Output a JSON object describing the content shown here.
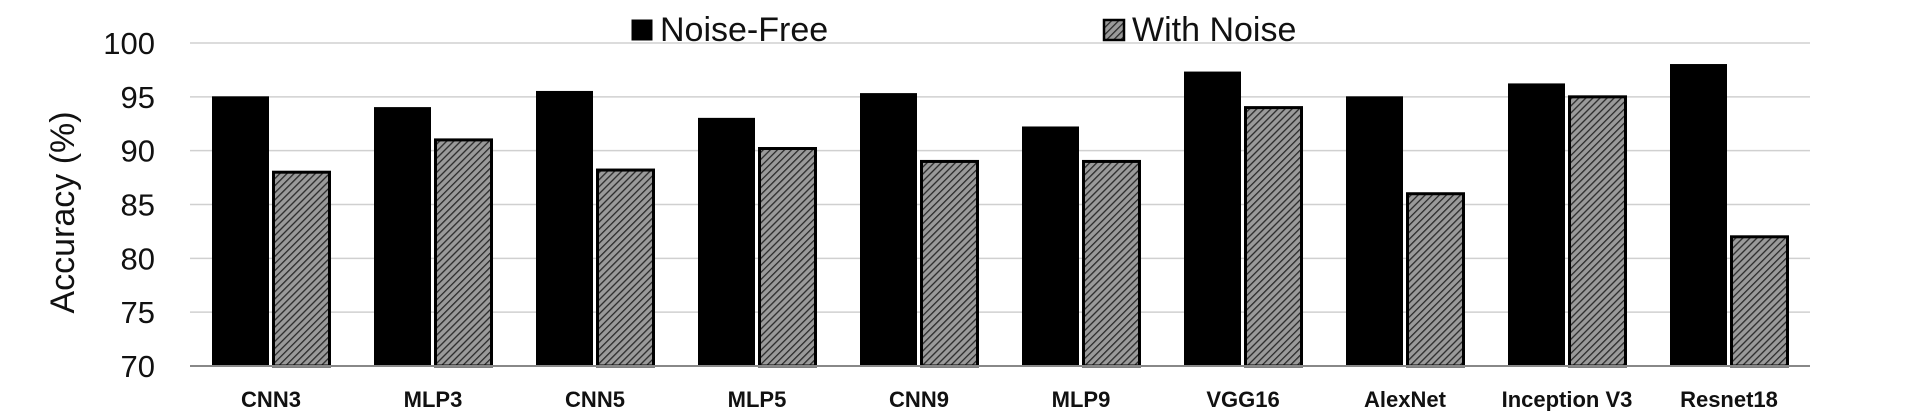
{
  "chart_data": {
    "type": "bar",
    "title": "",
    "xlabel": "",
    "ylabel": "Accuracy (%)",
    "ylim": [
      70,
      100
    ],
    "yticks": [
      70,
      75,
      80,
      85,
      90,
      95,
      100
    ],
    "grid": true,
    "legend_position": "top-center",
    "categories": [
      "CNN3",
      "MLP3",
      "CNN5",
      "MLP5",
      "CNN9",
      "MLP9",
      "VGG16",
      "AlexNet",
      "Inception V3",
      "Resnet18"
    ],
    "series": [
      {
        "name": "Noise-Free",
        "color": "#000000",
        "pattern": "solid",
        "values": [
          95,
          94,
          95.5,
          93,
          95.3,
          92.2,
          97.3,
          95,
          96.2,
          98
        ]
      },
      {
        "name": "With Noise",
        "color": "#555555",
        "pattern": "diagonal-hatch",
        "values": [
          88,
          91,
          88.2,
          90.2,
          89,
          89,
          94,
          86,
          95,
          82
        ]
      }
    ]
  }
}
